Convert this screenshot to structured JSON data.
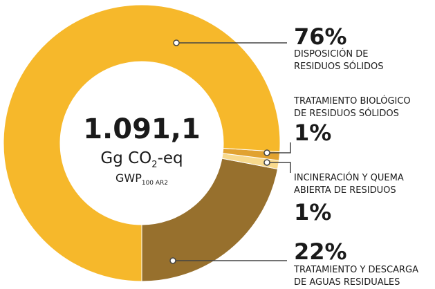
{
  "chart_data": {
    "type": "donut",
    "center": {
      "value": "1.091,1",
      "unit": "Gg CO",
      "unit_sub": "2",
      "unit_end": "-eq",
      "metric": "GWP",
      "metric_sub": "100 AR2"
    },
    "categories": [
      "DISPOSICIÓN DE RESIDUOS SÓLIDOS",
      "TRATAMIENTO BIOLÓGICO DE RESIDUOS SÓLIDOS",
      "INCINERACIÓN Y QUEMA ABIERTA DE RESIDUOS",
      "TRATAMIENTO Y DESCARGA DE AGUAS RESIDUALES"
    ],
    "values": [
      76,
      1,
      1,
      22
    ],
    "value_labels": [
      "76%",
      "1%",
      "1%",
      "22%"
    ],
    "colors": [
      "#f6b82b",
      "#e1a231",
      "#f8d98c",
      "#97702d"
    ]
  }
}
